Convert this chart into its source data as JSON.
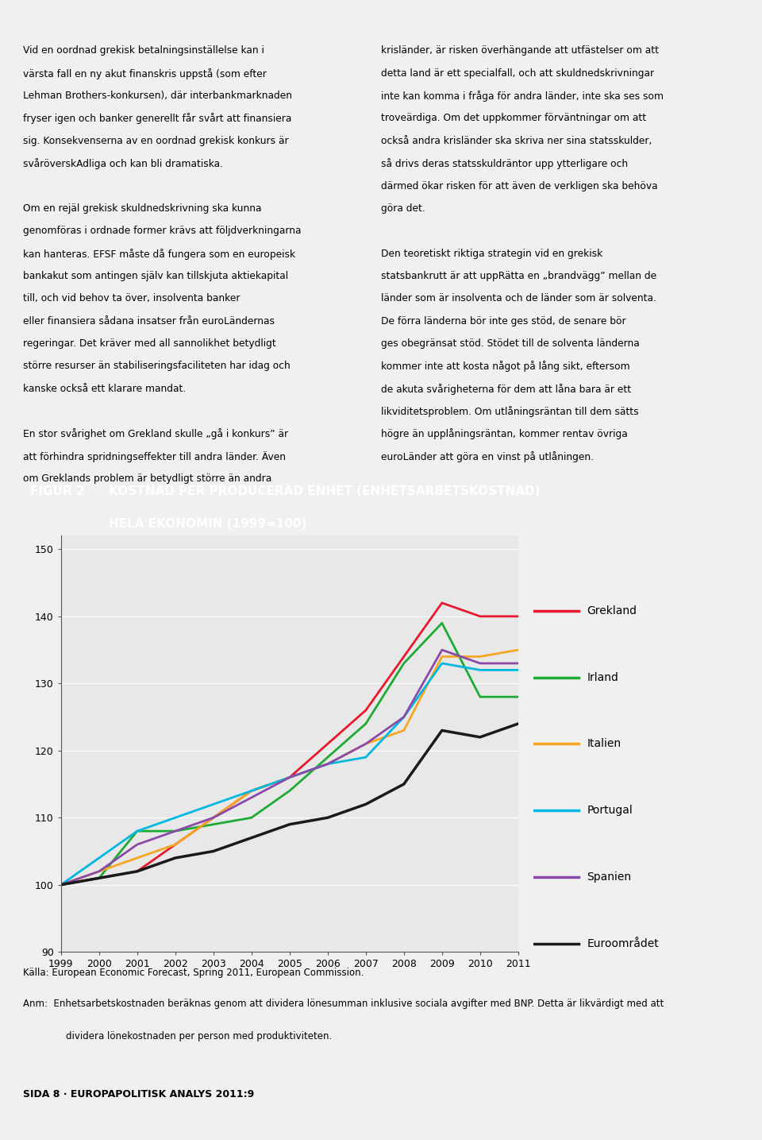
{
  "years": [
    1999,
    2000,
    2001,
    2002,
    2003,
    2004,
    2005,
    2006,
    2007,
    2008,
    2009,
    2010,
    2011
  ],
  "series": {
    "Grekland": [
      100,
      101,
      102,
      106,
      110,
      114,
      116,
      121,
      126,
      134,
      142,
      140,
      140
    ],
    "Irland": [
      100,
      101,
      108,
      108,
      109,
      110,
      114,
      119,
      124,
      133,
      139,
      128,
      128
    ],
    "Italien": [
      100,
      102,
      104,
      106,
      110,
      114,
      116,
      118,
      121,
      123,
      134,
      134,
      135
    ],
    "Portugal": [
      100,
      104,
      108,
      110,
      112,
      114,
      116,
      118,
      119,
      125,
      133,
      132,
      132
    ],
    "Spanien": [
      100,
      102,
      106,
      108,
      110,
      113,
      116,
      118,
      121,
      125,
      135,
      133,
      133
    ],
    "Euroområdet": [
      100,
      101,
      102,
      104,
      105,
      107,
      109,
      110,
      112,
      115,
      123,
      122,
      124
    ]
  },
  "colors": {
    "Grekland": "#e8192c",
    "Irland": "#1dab35",
    "Italien": "#f5a623",
    "Portugal": "#00b8e0",
    "Spanien": "#8b4aa8",
    "Euroområdet": "#1a1a1a"
  },
  "line_widths": {
    "Grekland": 2.0,
    "Irland": 2.0,
    "Italien": 2.0,
    "Portugal": 2.0,
    "Spanien": 2.0,
    "Euroområdet": 2.5
  },
  "ylim": [
    90,
    152
  ],
  "yticks": [
    90,
    100,
    110,
    120,
    130,
    140,
    150
  ],
  "header_bg": "#1a5fa8",
  "header_text_color": "#ffffff",
  "figur_label": "FIGUR 2",
  "title_line1": "KOSTNAD PER PRODUCERAD ENHET (ENHETSARBETSKOSTNAD)",
  "title_line2": "HELA EKONOMIN (1999=100)",
  "chart_bg": "#e8e8e8",
  "outer_bg": "#f0f0f0",
  "source_text": "Källa: European Economic Forecast, Spring 2011, European Commission.",
  "note_text": "Anm:  Enhetsarbetskostnaden beräknas genom att dividera lönesumman inklusive sociala avgifter med BNP. Detta är likvärdigt med att\n       dividera lönekostnaden per person med produktiviteten.",
  "footer_text": "SIDA 8 · EUROPAPOLITISK ANALYS 2011:9",
  "text_block_left": "Vid en oordnad grekisk betalningsinställelse kan i\nvärsta fall en ny akut finanskris uppstå (som efter\nLehman Brothers-konkursen), där interbankmarknaden\nfryser igen och banker generellt får svårt att finansiera\nsig. Konsekvenserna av en oordnad grekisk konkurs är\nsvåröverskAdliga och kan bli dramatiska.\n\nOm en rejäl grekisk skuldnedskrivning ska kunna\ngenomföras i ordnade former krävs att följdverkningarna\nkan hanteras. EFSF måste då fungera som en europeisk\nbankakut som antingen själv kan tillskjuta aktiekapital\ntill, och vid behov ta över, insolventa banker\neller finansiera sådana insatser från euroLändernas\nregeringar. Det kräver med all sannolikhet betydligt\nstörre resurser än stabiliseringsfaciliteten har idag och\nkanske också ett klarare mandat.\n\nEn stor svårighet om Grekland skulle „gå i konkurs” är\natt förhindra spridningseffekter till andra länder. Även\nom Greklands problem är betydligt större än andra"
}
